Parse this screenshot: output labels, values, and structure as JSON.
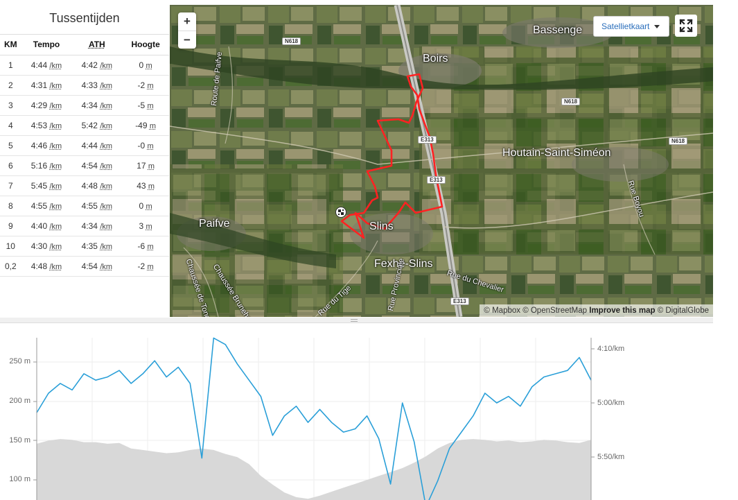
{
  "splits": {
    "title": "Tussentijden",
    "headers": {
      "km": "KM",
      "pace": "Tempo",
      "gap": "ATH",
      "elev": "Hoogte"
    },
    "pace_unit": "/km",
    "elev_unit": "m",
    "rows": [
      {
        "km": "1",
        "pace": "4:44",
        "gap": "4:42",
        "elev": "0"
      },
      {
        "km": "2",
        "pace": "4:31",
        "gap": "4:33",
        "elev": "-2"
      },
      {
        "km": "3",
        "pace": "4:29",
        "gap": "4:34",
        "elev": "-5"
      },
      {
        "km": "4",
        "pace": "4:53",
        "gap": "5:42",
        "elev": "-49"
      },
      {
        "km": "5",
        "pace": "4:46",
        "gap": "4:44",
        "elev": "-0"
      },
      {
        "km": "6",
        "pace": "5:16",
        "gap": "4:54",
        "elev": "17"
      },
      {
        "km": "7",
        "pace": "5:45",
        "gap": "4:48",
        "elev": "43"
      },
      {
        "km": "8",
        "pace": "4:55",
        "gap": "4:55",
        "elev": "0"
      },
      {
        "km": "9",
        "pace": "4:40",
        "gap": "4:34",
        "elev": "3"
      },
      {
        "km": "10",
        "pace": "4:30",
        "gap": "4:35",
        "elev": "-6"
      },
      {
        "km": "0,2",
        "pace": "4:48",
        "gap": "4:54",
        "elev": "-2"
      }
    ]
  },
  "map": {
    "zoom_in": "+",
    "zoom_out": "−",
    "layer_select": "Satellietkaart",
    "fullscreen_icon": "fullscreen-icon",
    "attribution": {
      "a": "© Mapbox © OpenStreetMap",
      "b": "Improve this map",
      "c": "© DigitalGlobe"
    },
    "places": [
      "Bassenge",
      "Boirs",
      "Houtain-Saint-Siméon",
      "Paifve",
      "Slins",
      "Fexhe-Slins"
    ],
    "roads": [
      "Route de Paifve",
      "Chaussée Brunehaut",
      "Chaussée de Tongres",
      "Rue du Tige",
      "Rue Provinciale",
      "Rue du Chevalier",
      "Rue Boyou"
    ],
    "shields": [
      "N618",
      "N618",
      "N618",
      "E313",
      "E313",
      "E313"
    ],
    "route_color": "#ff2222",
    "start_marker_icon": "checkered-flag-icon"
  },
  "chart": {
    "left_ticks": [
      "250 m",
      "200 m",
      "150 m",
      "100 m"
    ],
    "right_ticks": [
      "4:10/km",
      "5:00/km",
      "5:50/km"
    ],
    "pace_color": "#2a9fd8",
    "elev_color": "#d8d8d8",
    "elevation_m": [
      146,
      150,
      152,
      151,
      148,
      148,
      146,
      147,
      140,
      138,
      136,
      134,
      135,
      138,
      140,
      138,
      133,
      129,
      120,
      105,
      94,
      84,
      78,
      76,
      80,
      85,
      90,
      95,
      100,
      105,
      110,
      115,
      122,
      130,
      140,
      147,
      151,
      152,
      151,
      149,
      150,
      148,
      149,
      151,
      150,
      148,
      147,
      151
    ],
    "pace_min_km": [
      5.15,
      4.85,
      4.7,
      4.8,
      4.55,
      4.65,
      4.6,
      4.5,
      4.7,
      4.55,
      4.35,
      4.6,
      4.45,
      4.7,
      5.85,
      4.0,
      4.1,
      4.4,
      4.65,
      4.9,
      5.5,
      5.2,
      5.05,
      5.3,
      5.1,
      5.3,
      5.45,
      5.4,
      5.2,
      5.55,
      6.25,
      5.0,
      5.6,
      6.6,
      6.2,
      5.7,
      5.45,
      5.2,
      4.85,
      5.0,
      4.9,
      5.05,
      4.75,
      4.6,
      4.55,
      4.5,
      4.3,
      4.65
    ]
  }
}
